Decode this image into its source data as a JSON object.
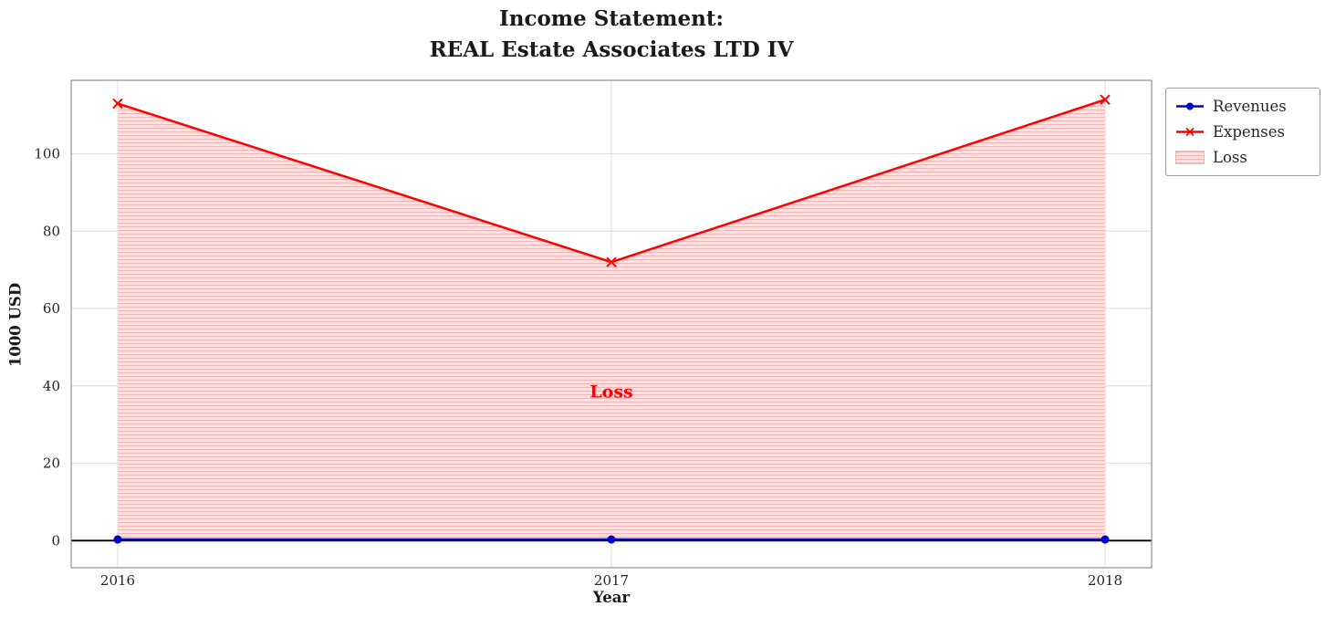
{
  "chart_data": {
    "type": "line",
    "title": "Income Statement:\nREAL Estate Associates LTD IV",
    "title_lines": [
      "Income Statement:",
      "REAL Estate Associates LTD IV"
    ],
    "xlabel": "Year",
    "ylabel": "1000 USD",
    "x": [
      "2016",
      "2017",
      "2018"
    ],
    "yticks": [
      0,
      20,
      40,
      60,
      80,
      100
    ],
    "ylim": [
      -7,
      119
    ],
    "grid": true,
    "legend_position": "upper right, outside plot",
    "series": [
      {
        "name": "Revenues",
        "color": "#0000cd",
        "marker": "o",
        "values": [
          0.3,
          0.3,
          0.3
        ]
      },
      {
        "name": "Expenses",
        "color": "#ff0000",
        "marker": "x",
        "values": [
          113,
          72,
          114
        ]
      }
    ],
    "fill": {
      "label": "Loss",
      "type": "fill_between",
      "between": [
        "Revenues",
        "Expenses"
      ],
      "facecolor": "#fce4e4",
      "hatchcolor": "#f5b4b4",
      "hatch": "horizontal"
    },
    "annotation": {
      "text": "Loss",
      "x": "2017",
      "y": 37,
      "color": "#ff0000"
    },
    "baseline": {
      "y": 0,
      "color": "#000000"
    },
    "colors": {
      "grid": "#dcdcdc",
      "frame": "#9a9a9a",
      "tick_text": "#262626"
    }
  }
}
